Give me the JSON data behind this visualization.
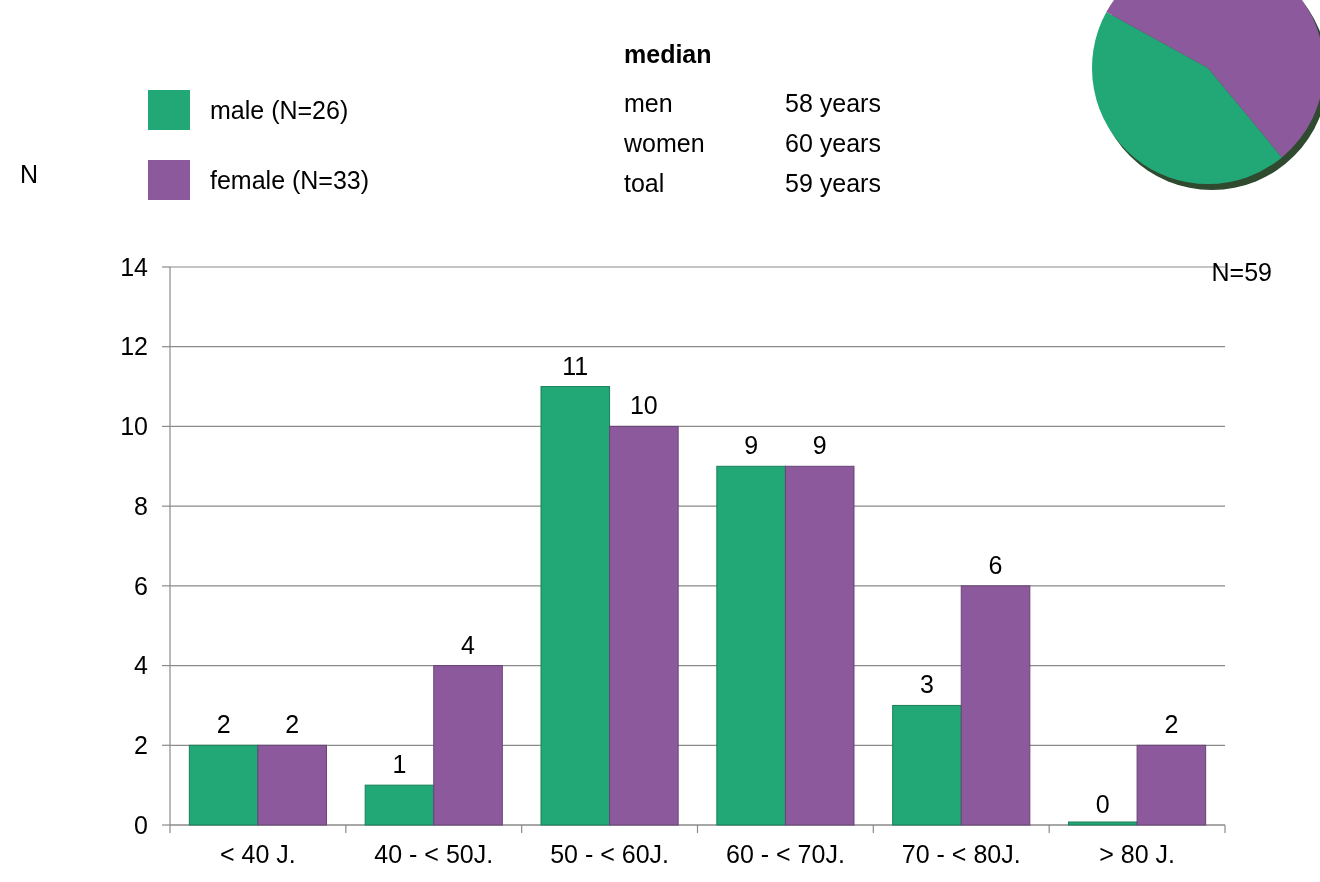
{
  "chart_data": [
    {
      "type": "bar",
      "ylabel": "N",
      "categories": [
        "< 40 J.",
        "40 - < 50J.",
        "50 - < 60J.",
        "60 - < 70J.",
        "70 - < 80J.",
        "> 80 J."
      ],
      "series": [
        {
          "name": "male (N=26)",
          "color": "#22a877",
          "values": [
            2,
            1,
            11,
            9,
            3,
            0
          ]
        },
        {
          "name": "female (N=33)",
          "color": "#8c5a9c",
          "values": [
            2,
            4,
            10,
            9,
            6,
            2
          ]
        }
      ],
      "ylim": [
        0,
        14
      ],
      "yticks": [
        0,
        2,
        4,
        6,
        8,
        10,
        12,
        14
      ],
      "grid": "y",
      "legend": "top left",
      "data_labels": true,
      "annotations": [
        "median",
        "men",
        "58 years",
        "women",
        "60 years",
        "toal",
        "59 years",
        "N=59"
      ]
    },
    {
      "type": "pie",
      "categories": [
        null,
        null
      ],
      "values": [
        44,
        56
      ],
      "colors": [
        "#22a877",
        "#8c5a9c"
      ]
    }
  ]
}
